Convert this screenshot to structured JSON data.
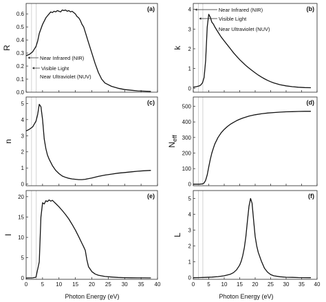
{
  "chart_data": [
    {
      "id": "R",
      "type": "line",
      "ylabel": "R",
      "panel_label": "(a)",
      "xlim": [
        0,
        40
      ],
      "ylim": [
        0,
        0.68
      ],
      "yticks": [
        0,
        0.1,
        0.2,
        0.3,
        0.4,
        0.5,
        0.6
      ],
      "ytick_decimals": 1,
      "x": [
        0,
        1,
        2,
        3,
        3.5,
        4,
        5,
        6,
        6.5,
        7,
        7.5,
        8,
        8.5,
        9,
        9.5,
        10,
        10.5,
        11,
        11.5,
        12,
        12.5,
        13,
        13.5,
        14,
        14.5,
        15,
        15.5,
        16,
        16.5,
        17,
        17.5,
        18,
        19,
        20,
        21,
        22,
        23,
        24,
        26,
        28,
        30,
        32,
        34,
        36,
        38
      ],
      "y": [
        0.28,
        0.29,
        0.31,
        0.35,
        0.39,
        0.45,
        0.52,
        0.57,
        0.585,
        0.6,
        0.615,
        0.61,
        0.62,
        0.615,
        0.625,
        0.62,
        0.615,
        0.63,
        0.625,
        0.63,
        0.62,
        0.625,
        0.615,
        0.62,
        0.61,
        0.6,
        0.58,
        0.57,
        0.55,
        0.52,
        0.5,
        0.46,
        0.38,
        0.3,
        0.22,
        0.15,
        0.1,
        0.07,
        0.045,
        0.03,
        0.02,
        0.015,
        0.01,
        0.008,
        0.006
      ],
      "annotations": [
        "Near Infrared (NIR)",
        "Visible Light",
        "Near Ultraviolet (NUV)"
      ]
    },
    {
      "id": "k",
      "type": "line",
      "ylabel": "k",
      "panel_label": "(b)",
      "xlim": [
        0,
        40
      ],
      "ylim": [
        -0.2,
        4.3
      ],
      "yticks": [
        0,
        1,
        2,
        3,
        4
      ],
      "ytick_decimals": 0,
      "x": [
        0,
        1,
        2,
        2.5,
        3,
        3.5,
        4,
        4.5,
        5,
        5.5,
        6,
        6.5,
        7,
        8,
        9,
        10,
        11,
        12,
        13,
        14,
        15,
        16,
        17,
        18,
        19,
        20,
        21,
        22,
        23,
        24,
        25,
        26,
        28,
        30,
        32,
        34,
        36,
        38
      ],
      "y": [
        0.05,
        0.08,
        0.12,
        0.18,
        0.28,
        0.55,
        1.4,
        3.1,
        3.75,
        3.6,
        3.35,
        3.25,
        3.1,
        2.85,
        2.6,
        2.4,
        2.2,
        2.0,
        1.8,
        1.62,
        1.45,
        1.3,
        1.15,
        1.02,
        0.9,
        0.78,
        0.67,
        0.57,
        0.48,
        0.4,
        0.33,
        0.27,
        0.18,
        0.12,
        0.08,
        0.05,
        0.035,
        0.025
      ],
      "annotations": [
        "Near Infrared (NIR)",
        "Visible Light",
        "Near Ultraviolet (NUV)"
      ]
    },
    {
      "id": "n",
      "type": "line",
      "ylabel": "n",
      "panel_label": "(c)",
      "xlim": [
        0,
        40
      ],
      "ylim": [
        -0.1,
        5.4
      ],
      "yticks": [
        0,
        1,
        2,
        3,
        4,
        5
      ],
      "ytick_decimals": 0,
      "x": [
        0,
        1,
        2,
        3,
        3.5,
        4,
        4.5,
        5,
        5.5,
        6,
        6.5,
        7,
        8,
        9,
        10,
        11,
        12,
        13,
        14,
        15,
        16,
        17,
        18,
        20,
        22,
        24,
        26,
        28,
        30,
        32,
        34,
        36,
        38
      ],
      "y": [
        3.3,
        3.4,
        3.55,
        3.9,
        4.3,
        4.95,
        4.8,
        4.0,
        2.8,
        2.2,
        1.8,
        1.55,
        1.15,
        0.85,
        0.65,
        0.5,
        0.42,
        0.36,
        0.32,
        0.3,
        0.28,
        0.28,
        0.3,
        0.38,
        0.48,
        0.56,
        0.62,
        0.68,
        0.72,
        0.76,
        0.8,
        0.83,
        0.85
      ]
    },
    {
      "id": "Neff",
      "type": "line",
      "ylabel": "Neff",
      "panel_label": "(d)",
      "xlim": [
        0,
        40
      ],
      "ylim": [
        -10,
        560
      ],
      "yticks": [
        0,
        100,
        200,
        300,
        400,
        500
      ],
      "ytick_decimals": 0,
      "x": [
        0,
        2,
        3,
        3.5,
        4,
        4.5,
        5,
        5.5,
        6,
        6.5,
        7,
        8,
        9,
        10,
        11,
        12,
        13,
        14,
        15,
        16,
        18,
        20,
        22,
        24,
        26,
        28,
        30,
        32,
        34,
        36,
        38
      ],
      "y": [
        0,
        0,
        2,
        8,
        25,
        60,
        110,
        160,
        200,
        232,
        260,
        300,
        330,
        352,
        370,
        385,
        397,
        408,
        417,
        425,
        437,
        446,
        452,
        457,
        460,
        463,
        465,
        466,
        467,
        468,
        468
      ]
    },
    {
      "id": "I",
      "type": "line",
      "ylabel": "I",
      "panel_label": "(e)",
      "xlim": [
        0,
        40
      ],
      "ylim": [
        -0.3,
        21.5
      ],
      "yticks": [
        0,
        5,
        10,
        15,
        20
      ],
      "ytick_decimals": 0,
      "x": [
        0,
        2,
        3,
        4,
        4.5,
        5,
        5.5,
        6,
        6.5,
        7,
        7.5,
        8,
        8.5,
        9,
        10,
        11,
        12,
        13,
        14,
        15,
        16,
        17,
        17.5,
        18,
        18.5,
        19,
        20,
        21,
        22,
        24,
        26,
        28,
        30,
        32,
        34,
        36,
        38
      ],
      "y": [
        0,
        0.05,
        0.2,
        4,
        15,
        18.5,
        18.2,
        19,
        18.8,
        19.2,
        18.9,
        19.1,
        18.7,
        18.3,
        17.5,
        16.6,
        15.6,
        14.5,
        13.2,
        11.8,
        10.2,
        8.5,
        7.7,
        6.8,
        4.5,
        2.8,
        1.6,
        1.0,
        0.7,
        0.4,
        0.25,
        0.15,
        0.1,
        0.08,
        0.06,
        0.05,
        0.04
      ]
    },
    {
      "id": "L",
      "type": "line",
      "ylabel": "L",
      "panel_label": "(f)",
      "xlim": [
        0,
        40
      ],
      "ylim": [
        -0.1,
        5.5
      ],
      "yticks": [
        0,
        1,
        2,
        3,
        4,
        5
      ],
      "ytick_decimals": 0,
      "x": [
        0,
        2,
        4,
        6,
        8,
        10,
        12,
        13,
        14,
        15,
        15.5,
        16,
        16.5,
        17,
        17.5,
        18,
        18.5,
        19,
        19.5,
        20,
        20.5,
        21,
        22,
        23,
        24,
        25,
        26,
        28,
        30,
        32,
        34,
        36,
        38
      ],
      "y": [
        0,
        0.01,
        0.02,
        0.04,
        0.07,
        0.12,
        0.22,
        0.32,
        0.5,
        0.8,
        1.05,
        1.4,
        1.9,
        2.6,
        3.6,
        4.5,
        5.0,
        4.7,
        3.6,
        2.6,
        2.0,
        1.6,
        1.05,
        0.6,
        0.35,
        0.2,
        0.12,
        0.06,
        0.03,
        0.02,
        0.01,
        0.005,
        0.002
      ]
    }
  ],
  "shared": {
    "xticks": [
      0,
      5,
      10,
      15,
      20,
      25,
      30,
      35,
      40
    ],
    "xlabel": "Photon Energy (eV)",
    "region_lines_ev": [
      1.65,
      3.1
    ],
    "line_color": "#111111",
    "region_line_color": "#b5b5b5"
  }
}
